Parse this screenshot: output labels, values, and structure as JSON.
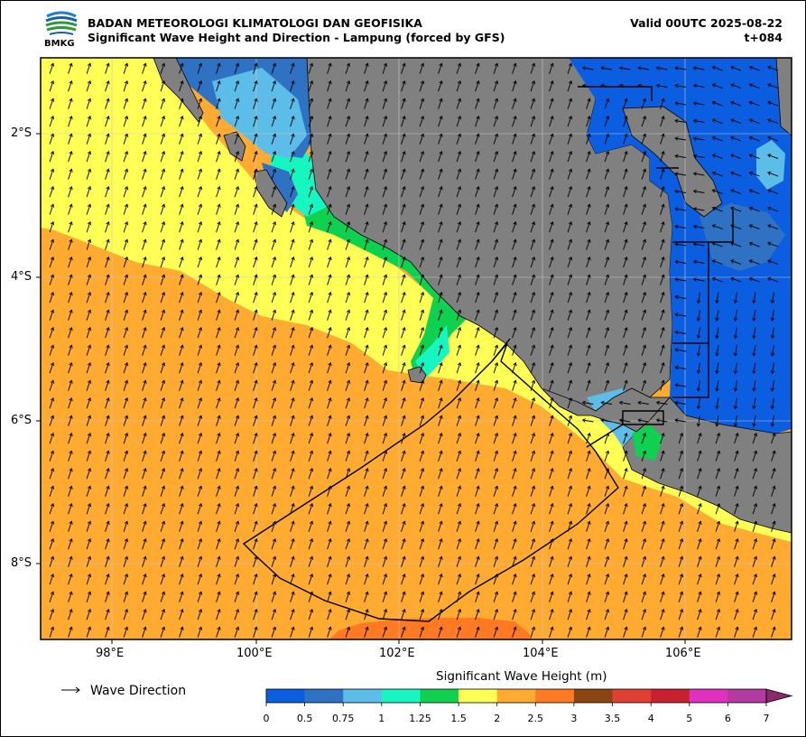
{
  "header": {
    "agency": "BADAN METEOROLOGI KLIMATOLOGI DAN GEOFISIKA",
    "subtitle": "Significant Wave Height and Direction - Lampung (forced by GFS)",
    "valid": "Valid 00UTC 2025-08-22",
    "step": "t+084",
    "logo_text": "BMKG"
  },
  "map": {
    "lon_range": [
      97.0,
      107.5
    ],
    "lat_range": [
      -9.1,
      -1.0
    ],
    "lon_ticks": [
      "98°E",
      "100°E",
      "102°E",
      "104°E",
      "106°E"
    ],
    "lat_ticks": [
      "2°S",
      "4°S",
      "6°S",
      "8°S"
    ],
    "grid": true,
    "land_color": "#808080",
    "dominant_wave_direction": "north-northeast (offshore Indian Ocean), south-southwest (Java Sea)"
  },
  "legend": {
    "wave_direction_label": "Wave Direction"
  },
  "colorbar": {
    "title": "Significant Wave Height (m)",
    "ticks": [
      "0",
      "0.5",
      "0.75",
      "1",
      "1.25",
      "1.5",
      "2",
      "2.5",
      "3",
      "3.5",
      "4",
      "5",
      "6",
      "7"
    ],
    "colors": [
      "#0b5ee0",
      "#2f72c4",
      "#5bbde8",
      "#17f5c0",
      "#10d050",
      "#ffff55",
      "#ffaa30",
      "#ff7a22",
      "#8b4513",
      "#e04030",
      "#c8202e",
      "#e030c0",
      "#b23aa0"
    ],
    "extend": "max"
  }
}
